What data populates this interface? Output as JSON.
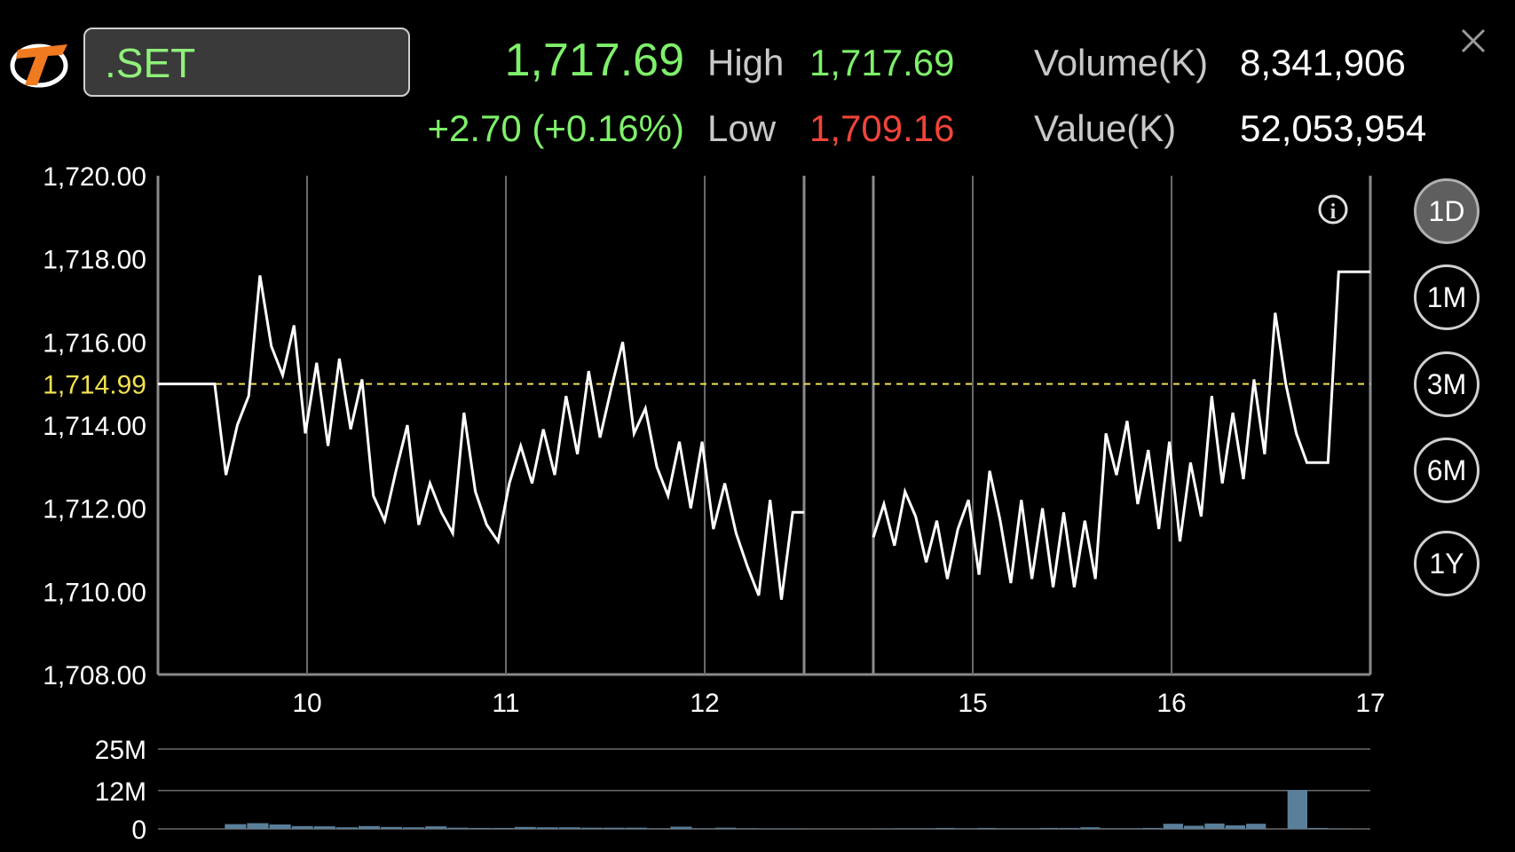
{
  "header": {
    "symbol": ".SET",
    "last_price": "1,717.69",
    "change": "+2.70 (+0.16%)",
    "high_label": "High",
    "high_value": "1,717.69",
    "low_label": "Low",
    "low_value": "1,709.16",
    "volume_label": "Volume(K)",
    "volume_value": "8,341,906",
    "value_label": "Value(K)",
    "value_value": "52,053,954"
  },
  "icons": {
    "logo": "brand-logo-icon",
    "close": "close-icon",
    "info": "info-icon"
  },
  "range_buttons": [
    {
      "label": "1D",
      "active": true
    },
    {
      "label": "1M",
      "active": false
    },
    {
      "label": "3M",
      "active": false
    },
    {
      "label": "6M",
      "active": false
    },
    {
      "label": "1Y",
      "active": false
    }
  ],
  "colors": {
    "up": "#7ef06a",
    "down": "#f0443a",
    "reference_line": "#f0e050",
    "price_line": "#ffffff",
    "volume_bar": "#5a7f9a"
  },
  "chart_data": {
    "type": "line",
    "ylim": [
      1708,
      1720
    ],
    "y_ticks": [
      "1,708.00",
      "1,710.00",
      "1,712.00",
      "1,714.00",
      "1,716.00",
      "1,718.00",
      "1,720.00"
    ],
    "reference": {
      "value": 1714.99,
      "label": "1,714.99"
    },
    "x_tick_labels": [
      "10",
      "11",
      "12",
      "15",
      "16",
      "17"
    ],
    "session_gap": true,
    "series": [
      {
        "values_before_gap": [
          1714.99,
          1714.99,
          1714.99,
          1714.99,
          1714.99,
          1714.99,
          1712.8,
          1714.0,
          1714.7,
          1717.6,
          1715.9,
          1715.2,
          1716.4,
          1713.8,
          1715.5,
          1713.5,
          1715.6,
          1713.9,
          1715.1,
          1712.3,
          1711.7,
          1712.9,
          1714.0,
          1711.6,
          1712.6,
          1711.9,
          1711.4,
          1714.3,
          1712.4,
          1711.6,
          1711.2,
          1712.6,
          1713.5,
          1712.6,
          1713.9,
          1712.8,
          1714.7,
          1713.3,
          1715.3,
          1713.7,
          1714.9,
          1716.0,
          1713.8,
          1714.4,
          1713.0,
          1712.3,
          1713.6,
          1712.0,
          1713.6,
          1711.5,
          1712.6,
          1711.4,
          1710.6,
          1709.9,
          1712.2,
          1709.8,
          1711.9,
          1711.9
        ],
        "values_after_gap": [
          1711.3,
          1712.1,
          1711.1,
          1712.4,
          1711.8,
          1710.7,
          1711.7,
          1710.3,
          1711.5,
          1712.2,
          1710.4,
          1712.9,
          1711.7,
          1710.2,
          1712.2,
          1710.3,
          1712.0,
          1710.1,
          1711.9,
          1710.1,
          1711.7,
          1710.3,
          1713.8,
          1712.8,
          1714.1,
          1712.1,
          1713.4,
          1711.5,
          1713.6,
          1711.2,
          1713.1,
          1711.8,
          1714.7,
          1712.6,
          1714.3,
          1712.7,
          1715.1,
          1713.3,
          1716.7,
          1715.0,
          1713.8,
          1713.1,
          1713.1,
          1713.1,
          1717.69,
          1717.69,
          1717.69,
          1717.69
        ]
      }
    ],
    "volume": {
      "y_ticks": [
        "25M",
        "12M",
        "0"
      ],
      "ylim": [
        0,
        25
      ],
      "unit": "M",
      "values_before_gap": [
        0,
        0,
        0,
        0,
        0,
        0,
        1.5,
        0,
        1.8,
        0,
        1.4,
        0,
        0.9,
        0,
        0.8,
        0,
        0.5,
        0,
        0.9,
        0,
        0.6,
        0,
        0.5,
        0,
        0.8,
        0,
        0.4,
        0,
        0.3,
        0,
        0.3,
        0,
        0.6,
        0,
        0.5,
        0,
        0.5,
        0,
        0.4,
        0,
        0.4,
        0,
        0.4,
        0,
        0.2,
        0,
        0.7,
        0,
        0.2,
        0,
        0.4,
        0,
        0.2,
        0,
        0.1,
        0,
        0.1,
        0
      ],
      "values_after_gap": [
        0.1,
        0,
        0.2,
        0,
        0.2,
        0,
        0.3,
        0,
        0.2,
        0,
        0.3,
        0,
        0.2,
        0,
        0.2,
        0,
        0.3,
        0,
        0.3,
        0,
        0.5,
        0,
        0.2,
        0,
        0.2,
        0,
        0.3,
        0,
        1.6,
        0,
        1.0,
        0,
        1.7,
        0,
        1.1,
        0,
        1.6,
        0,
        0,
        0,
        12.2,
        0,
        0.3,
        0,
        0.1,
        0,
        0,
        0
      ]
    }
  }
}
